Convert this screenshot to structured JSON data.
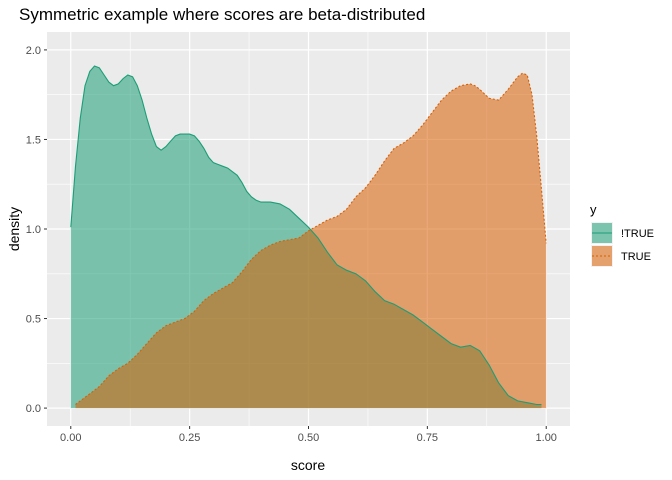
{
  "chart_data": {
    "type": "area",
    "title": "Symmetric example where scores are beta-distributed",
    "xlabel": "score",
    "ylabel": "density",
    "xlim": [
      0,
      1
    ],
    "ylim": [
      0,
      2
    ],
    "x_ticks": [
      0,
      0.25,
      0.5,
      0.75,
      1
    ],
    "x_tick_labels": [
      "0.00",
      "0.25",
      "0.50",
      "0.75",
      "1.00"
    ],
    "y_ticks": [
      0,
      0.5,
      1,
      1.5,
      2
    ],
    "y_tick_labels": [
      "0.0",
      "0.5",
      "1.0",
      "1.5",
      "2.0"
    ],
    "grid": true,
    "legend": {
      "title": "y",
      "position": "right"
    },
    "series": [
      {
        "name": "!TRUE",
        "line_style": "solid",
        "color": "#1b9e77",
        "fill": "#1b9e77",
        "x": [
          0.0,
          0.01,
          0.02,
          0.03,
          0.04,
          0.05,
          0.06,
          0.07,
          0.08,
          0.09,
          0.1,
          0.11,
          0.12,
          0.13,
          0.14,
          0.15,
          0.16,
          0.17,
          0.18,
          0.19,
          0.2,
          0.21,
          0.22,
          0.23,
          0.24,
          0.25,
          0.26,
          0.27,
          0.28,
          0.29,
          0.3,
          0.31,
          0.32,
          0.33,
          0.34,
          0.35,
          0.36,
          0.37,
          0.38,
          0.39,
          0.4,
          0.42,
          0.44,
          0.46,
          0.48,
          0.5,
          0.52,
          0.54,
          0.56,
          0.58,
          0.6,
          0.62,
          0.64,
          0.66,
          0.68,
          0.7,
          0.72,
          0.74,
          0.76,
          0.78,
          0.8,
          0.82,
          0.84,
          0.86,
          0.88,
          0.9,
          0.92,
          0.94,
          0.96,
          0.98,
          0.99
        ],
        "y": [
          1.01,
          1.35,
          1.62,
          1.8,
          1.88,
          1.91,
          1.9,
          1.86,
          1.82,
          1.8,
          1.81,
          1.84,
          1.86,
          1.85,
          1.8,
          1.72,
          1.62,
          1.53,
          1.46,
          1.44,
          1.46,
          1.49,
          1.52,
          1.53,
          1.53,
          1.53,
          1.52,
          1.49,
          1.45,
          1.4,
          1.37,
          1.36,
          1.35,
          1.34,
          1.32,
          1.3,
          1.26,
          1.21,
          1.18,
          1.16,
          1.15,
          1.15,
          1.14,
          1.11,
          1.06,
          1.01,
          0.95,
          0.87,
          0.8,
          0.77,
          0.75,
          0.71,
          0.65,
          0.6,
          0.58,
          0.55,
          0.52,
          0.48,
          0.44,
          0.4,
          0.36,
          0.34,
          0.35,
          0.32,
          0.24,
          0.14,
          0.07,
          0.04,
          0.03,
          0.02,
          0.02
        ]
      },
      {
        "name": "TRUE",
        "line_style": "dashed",
        "color": "#d95f02",
        "fill": "#d95f02",
        "x": [
          0.01,
          0.02,
          0.04,
          0.06,
          0.08,
          0.1,
          0.12,
          0.14,
          0.16,
          0.18,
          0.2,
          0.22,
          0.24,
          0.26,
          0.28,
          0.3,
          0.32,
          0.34,
          0.36,
          0.38,
          0.4,
          0.42,
          0.44,
          0.46,
          0.48,
          0.5,
          0.52,
          0.54,
          0.56,
          0.58,
          0.6,
          0.62,
          0.64,
          0.66,
          0.68,
          0.7,
          0.72,
          0.74,
          0.76,
          0.78,
          0.8,
          0.82,
          0.84,
          0.85,
          0.86,
          0.88,
          0.9,
          0.92,
          0.94,
          0.95,
          0.96,
          0.97,
          0.98,
          0.99,
          1.0
        ],
        "y": [
          0.02,
          0.04,
          0.08,
          0.12,
          0.18,
          0.22,
          0.25,
          0.3,
          0.36,
          0.42,
          0.46,
          0.48,
          0.5,
          0.54,
          0.6,
          0.64,
          0.67,
          0.7,
          0.76,
          0.83,
          0.88,
          0.91,
          0.93,
          0.94,
          0.95,
          0.99,
          1.02,
          1.05,
          1.07,
          1.11,
          1.18,
          1.23,
          1.3,
          1.38,
          1.45,
          1.48,
          1.52,
          1.58,
          1.65,
          1.72,
          1.77,
          1.8,
          1.81,
          1.8,
          1.78,
          1.73,
          1.72,
          1.78,
          1.85,
          1.87,
          1.86,
          1.75,
          1.52,
          1.22,
          0.92
        ]
      }
    ]
  }
}
